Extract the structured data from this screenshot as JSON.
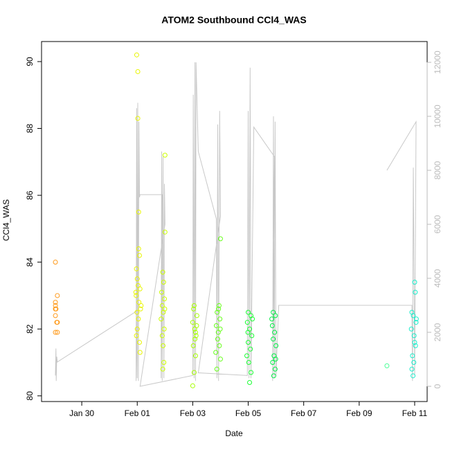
{
  "chart_data": {
    "type": "scatter",
    "title": "ATOM2 Southbound CCl4_WAS",
    "x_label": "Date",
    "y_label": "CCl4_WAS",
    "xlim": [
      -1.45,
      12.45
    ],
    "xticks": [
      {
        "value": 0,
        "label": "Jan 30"
      },
      {
        "value": 2,
        "label": "Feb 01"
      },
      {
        "value": 4,
        "label": "Feb 03"
      },
      {
        "value": 6,
        "label": "Feb 05"
      },
      {
        "value": 8,
        "label": "Feb 07"
      },
      {
        "value": 10,
        "label": "Feb 09"
      },
      {
        "value": 12,
        "label": "Feb 11"
      }
    ],
    "ylim": [
      79.83,
      90.6
    ],
    "yticks": [
      80,
      82,
      84,
      86,
      88,
      90
    ],
    "y2lim": [
      -564,
      12770
    ],
    "y2ticks": [
      0,
      2000,
      4000,
      6000,
      8000,
      10000,
      12000
    ],
    "series": [
      {
        "color": "#ff9a1a",
        "x": [
          -0.95,
          -0.95,
          -0.95,
          -0.95,
          -0.93,
          -0.95,
          -0.9,
          -0.88,
          -0.88,
          -0.95,
          -0.88
        ],
        "values": [
          84.0,
          82.8,
          82.7,
          82.6,
          82.6,
          82.4,
          82.2,
          82.2,
          83.0,
          81.9,
          81.9
        ]
      },
      {
        "color": "#e8f500",
        "x": [
          1.98,
          2.02,
          2.02,
          2.05,
          2.05,
          2.08,
          1.97,
          2.0,
          2.03,
          2.1,
          1.96,
          2.06,
          2.12,
          1.99,
          2.04,
          2.0,
          1.97,
          2.08,
          2.1,
          2.14,
          1.95
        ],
        "values": [
          90.2,
          89.7,
          88.3,
          85.5,
          84.4,
          84.2,
          83.8,
          83.5,
          83.3,
          83.2,
          83.0,
          82.8,
          82.6,
          82.5,
          82.3,
          82.0,
          81.8,
          81.6,
          81.3,
          82.7,
          83.1
        ]
      },
      {
        "color": "#ccff00",
        "x": [
          3.0,
          3.0,
          2.92,
          2.95,
          2.88,
          2.98,
          2.9,
          2.94,
          2.86,
          2.97,
          2.9,
          2.93,
          2.96,
          2.92,
          2.99
        ],
        "values": [
          87.2,
          84.9,
          83.7,
          83.4,
          83.1,
          82.9,
          82.7,
          82.5,
          82.3,
          82.0,
          81.8,
          81.5,
          81.0,
          80.8,
          82.6
        ]
      },
      {
        "color": "#a6ff00",
        "x": [
          4.0,
          4.05,
          4.1,
          4.02,
          4.12,
          4.07,
          4.0,
          4.15,
          4.03,
          4.05,
          4.1,
          4.14,
          4.08
        ],
        "values": [
          80.3,
          80.7,
          81.2,
          81.5,
          81.8,
          82.0,
          82.2,
          82.4,
          82.6,
          82.7,
          81.9,
          82.1,
          81.7
        ]
      },
      {
        "color": "#66ff1a",
        "x": [
          5.0,
          4.95,
          4.88,
          4.98,
          4.85,
          4.92,
          4.9,
          4.96,
          4.83,
          5.0,
          4.87,
          4.93,
          4.99
        ],
        "values": [
          84.7,
          82.7,
          82.5,
          82.3,
          82.1,
          81.9,
          81.7,
          81.5,
          81.3,
          81.1,
          80.8,
          82.6,
          82.0
        ]
      },
      {
        "color": "#1aff33",
        "x": [
          6.0,
          6.1,
          5.97,
          6.05,
          6.13,
          6.0,
          6.08,
          5.95,
          6.02,
          6.1,
          6.05,
          6.15,
          5.99
        ],
        "values": [
          82.5,
          82.4,
          82.2,
          82.0,
          81.8,
          81.6,
          81.4,
          81.2,
          81.0,
          80.7,
          80.4,
          82.3,
          81.9
        ]
      },
      {
        "color": "#00ee44",
        "x": [
          6.9,
          6.98,
          6.87,
          6.95,
          6.9,
          7.0,
          6.93,
          6.88,
          6.97,
          6.92,
          6.85,
          6.99
        ],
        "values": [
          82.5,
          82.4,
          82.1,
          81.9,
          81.7,
          81.5,
          81.2,
          81.0,
          80.8,
          80.6,
          82.3,
          81.1
        ]
      },
      {
        "color": "#4dff99",
        "x": [
          11.0
        ],
        "values": [
          80.9
        ]
      },
      {
        "color": "#1aeecc",
        "x": [
          12.0,
          12.02,
          11.9,
          11.95,
          12.05,
          11.88,
          11.98,
          12.03,
          11.92,
          11.97,
          11.9,
          11.94,
          12.06,
          12.0
        ],
        "values": [
          83.4,
          83.1,
          82.5,
          82.4,
          82.2,
          82.0,
          81.8,
          81.5,
          81.2,
          81.0,
          80.8,
          80.6,
          82.3,
          81.6
        ]
      },
      {
        "type": "line",
        "axis": "y2",
        "color": "#c8c8c8",
        "x": [
          -0.95,
          -0.93,
          -0.92,
          -0.9,
          -0.88,
          2.0,
          1.96,
          1.98,
          2.0,
          2.02,
          2.04,
          2.06,
          2.08,
          2.1,
          2.9,
          2.86,
          2.88,
          2.9,
          2.93,
          2.96,
          2.98,
          3.0,
          2.1,
          4.0,
          4.02,
          4.05,
          4.08,
          4.1,
          4.12,
          4.2,
          4.85,
          4.87,
          4.9,
          4.93,
          4.97,
          5.0,
          4.2,
          5.97,
          6.0,
          6.03,
          6.07,
          6.1,
          6.2,
          6.95,
          6.88,
          6.91,
          6.94,
          6.97,
          7.0,
          7.1,
          11.9,
          11.92,
          11.95,
          12.0,
          12.05,
          11.0
        ],
        "values": [
          400,
          1400,
          200,
          1100,
          900,
          2800,
          200,
          10300,
          300,
          10500,
          200,
          9800,
          7000,
          7100,
          7100,
          300,
          8700,
          200,
          8500,
          300,
          7500,
          6000,
          0,
          400,
          10800,
          300,
          12000,
          200,
          12000,
          8700,
          6200,
          300,
          9700,
          200,
          10200,
          6300,
          500,
          400,
          10200,
          300,
          11800,
          300,
          9600,
          8500,
          200,
          10000,
          300,
          9800,
          400,
          3000,
          3000,
          200,
          8100,
          400,
          9800,
          8000
        ]
      }
    ]
  }
}
